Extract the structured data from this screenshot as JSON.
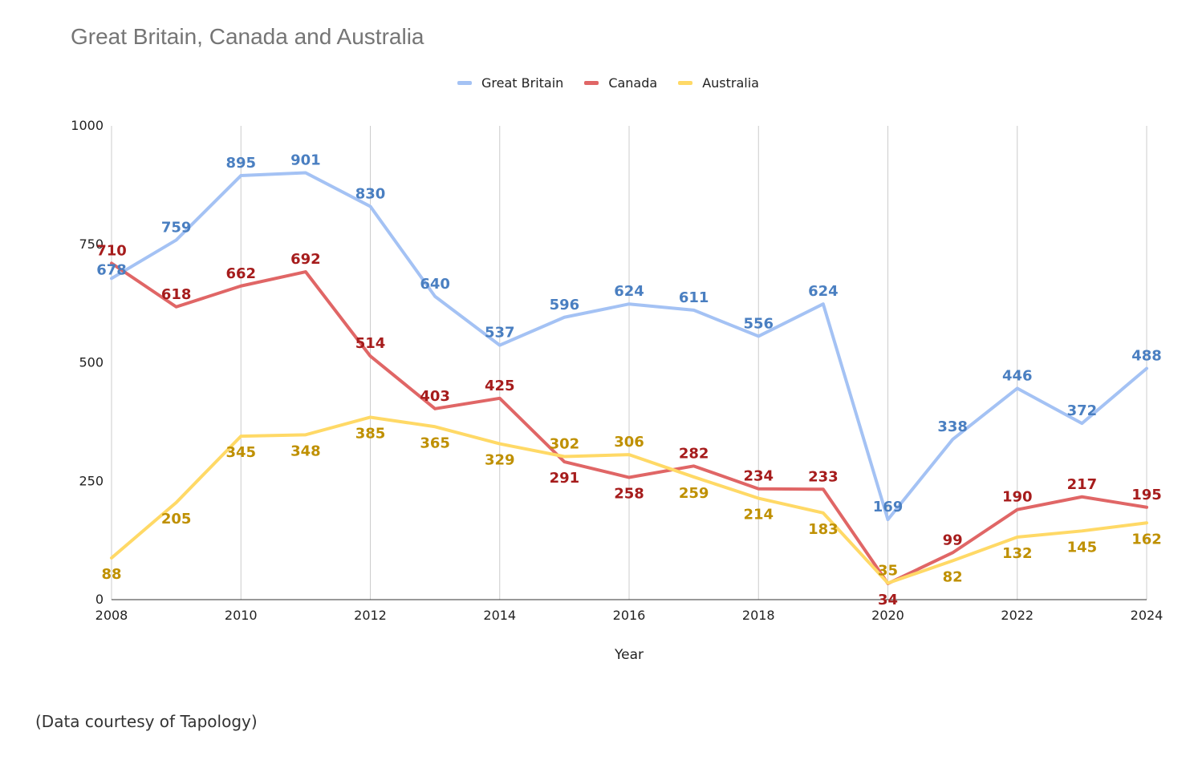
{
  "chart_data": {
    "type": "line",
    "title": "Great Britain, Canada and Australia",
    "xlabel": "Year",
    "ylabel": "",
    "x": [
      2008,
      2009,
      2010,
      2011,
      2012,
      2013,
      2014,
      2015,
      2016,
      2017,
      2018,
      2019,
      2020,
      2021,
      2022,
      2023,
      2024
    ],
    "xticks": [
      "2008",
      "2010",
      "2012",
      "2014",
      "2016",
      "2018",
      "2020",
      "2022",
      "2024"
    ],
    "yticks": [
      "0",
      "250",
      "500",
      "750",
      "1000"
    ],
    "xlim": [
      2008,
      2024
    ],
    "ylim": [
      0,
      1000
    ],
    "grid": "vertical",
    "legend_position": "top-center",
    "series": [
      {
        "name": "Great Britain",
        "color": "#a4c2f4",
        "label_color": "#4a7fc1",
        "values": [
          678,
          759,
          895,
          901,
          830,
          640,
          537,
          596,
          624,
          611,
          556,
          624,
          169,
          338,
          446,
          372,
          488
        ]
      },
      {
        "name": "Canada",
        "color": "#e06666",
        "label_color": "#a61c1c",
        "values": [
          710,
          618,
          662,
          692,
          514,
          403,
          425,
          291,
          258,
          282,
          234,
          233,
          34,
          99,
          190,
          217,
          195
        ]
      },
      {
        "name": "Australia",
        "color": "#ffd966",
        "label_color": "#bf9000",
        "values": [
          88,
          205,
          345,
          348,
          385,
          365,
          329,
          302,
          306,
          259,
          214,
          183,
          35,
          82,
          132,
          145,
          162
        ]
      }
    ]
  },
  "caption": "(Data courtesy of Tapology)"
}
